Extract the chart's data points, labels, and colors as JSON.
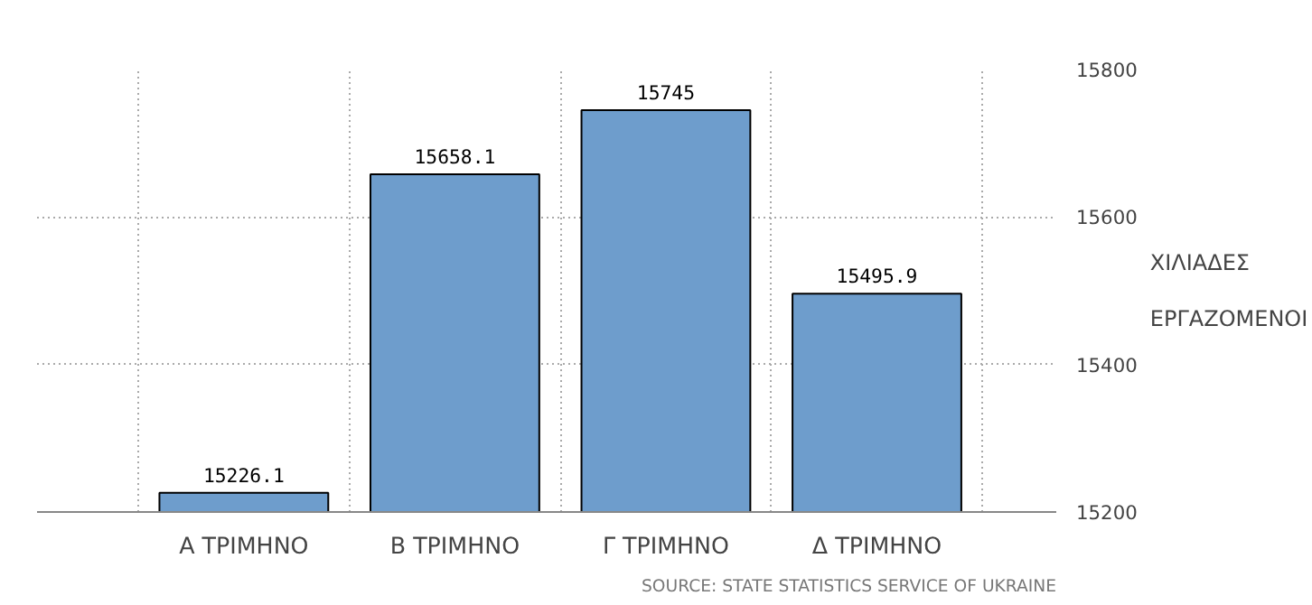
{
  "chart_data": {
    "type": "bar",
    "ylabel": "ΧΙΛΙΑΔΕΣ\nΕΡΓΑΖΟΜΕΝΟΙ",
    "categories": [
      "Α ΤΡΙΜΗΝΟ",
      "Β ΤΡΙΜΗΝΟ",
      "Γ ΤΡΙΜΗΝΟ",
      "Δ ΤΡΙΜΗΝΟ"
    ],
    "values": [
      15226.1,
      15658.1,
      15745,
      15495.9
    ],
    "color": "#6e9dcc",
    "ylim": [
      15200,
      15800
    ],
    "yticks": [
      15200,
      15400,
      15600,
      15800
    ],
    "grid": true,
    "data_labels": true,
    "annotations": [
      "SOURCE: STATE STATISTICS SERVICE OF UKRAINE"
    ]
  }
}
